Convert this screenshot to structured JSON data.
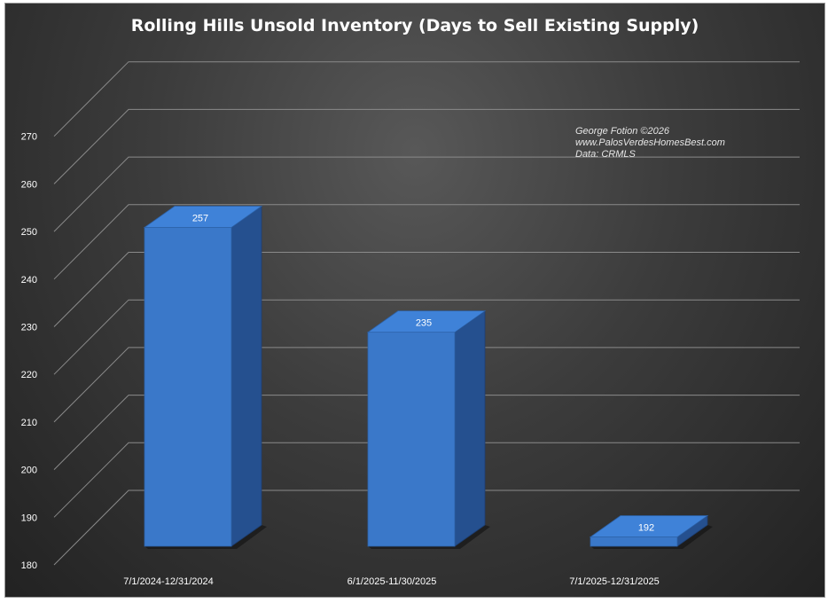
{
  "chart_data": {
    "type": "bar",
    "title": "Rolling Hills Unsold Inventory (Days to Sell Existing Supply)",
    "categories": [
      "7/1/2024-12/31/2024",
      "6/1/2025-11/30/2025",
      "7/1/2025-12/31/2025"
    ],
    "values": [
      257,
      235,
      192
    ],
    "data_labels": [
      "257",
      "235",
      "192"
    ],
    "xlabel": "",
    "ylabel": "",
    "ylim": [
      180,
      270
    ],
    "yticks": [
      180,
      190,
      200,
      210,
      220,
      230,
      240,
      250,
      260,
      270
    ],
    "ytick_labels": [
      "180",
      "190",
      "200",
      "210",
      "220",
      "230",
      "240",
      "250",
      "260",
      "270"
    ],
    "grid": true,
    "legend": "none",
    "bar_color": "#3a78c9",
    "annotations": [
      "George Fotion ©2026",
      "www.PalosVerdesHomesBest.com",
      "Data: CRMLS"
    ]
  }
}
